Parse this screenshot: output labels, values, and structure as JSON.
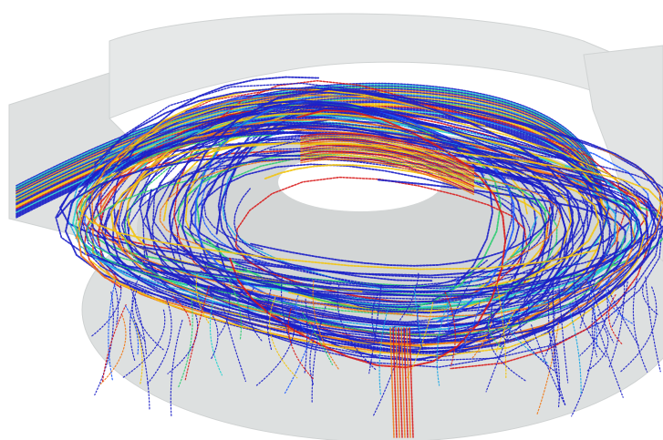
{
  "scene": {
    "subject": "cfd-streamline-visualization",
    "background_color": "#ffffff",
    "housing_color": "#d9dcdc",
    "housing_edge_color": "#c4c8c8",
    "palette": {
      "dominant": "#1b1fc8",
      "secondary": [
        "#1e5bff",
        "#1aa6e6",
        "#24d3cf",
        "#2ecc71",
        "#f2c40f",
        "#f07a1a",
        "#d81b1b"
      ]
    }
  }
}
